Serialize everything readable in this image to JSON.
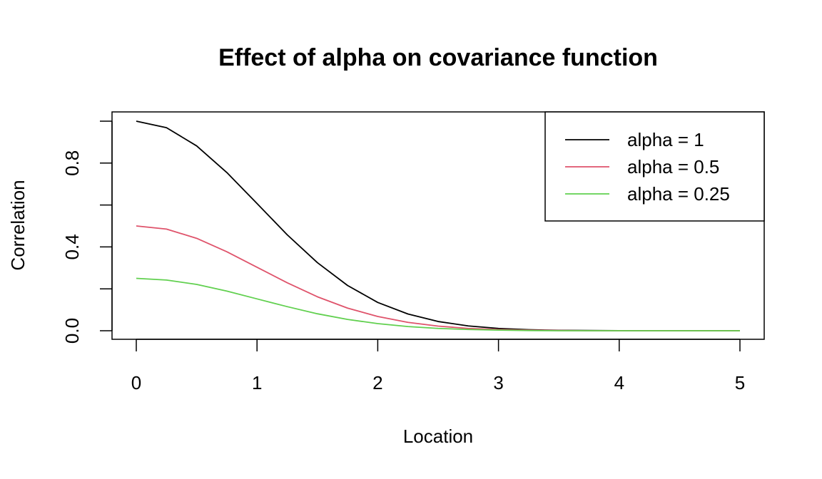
{
  "chart_data": {
    "type": "line",
    "title": "Effect of alpha on covariance function",
    "xlabel": "Location",
    "ylabel": "Correlation",
    "xlim": [
      0,
      5
    ],
    "ylim": [
      0,
      1
    ],
    "x_ticks": [
      0,
      1,
      2,
      3,
      4,
      5
    ],
    "x_tick_labels": [
      "0",
      "1",
      "2",
      "3",
      "4",
      "5"
    ],
    "y_ticks": [
      0,
      0.2,
      0.4,
      0.6,
      0.8,
      1.0
    ],
    "y_tick_labels": [
      "0.0",
      "",
      "0.4",
      "",
      "0.8",
      ""
    ],
    "grid": false,
    "legend_position": "top-right",
    "x": [
      0,
      0.25,
      0.5,
      0.75,
      1,
      1.25,
      1.5,
      1.75,
      2,
      2.25,
      2.5,
      2.75,
      3,
      3.25,
      3.5,
      3.75,
      4,
      4.25,
      4.5,
      4.75,
      5
    ],
    "series": [
      {
        "name": "alpha = 1",
        "color": "#000000",
        "values": [
          1.0,
          0.969,
          0.882,
          0.755,
          0.607,
          0.458,
          0.325,
          0.216,
          0.135,
          0.08,
          0.044,
          0.023,
          0.011,
          0.005,
          0.002,
          0.001,
          0.0003,
          0.0001,
          0.0,
          0.0,
          0.0
        ]
      },
      {
        "name": "alpha = 0.5",
        "color": "#DF536B",
        "values": [
          0.5,
          0.485,
          0.441,
          0.377,
          0.303,
          0.229,
          0.162,
          0.108,
          0.068,
          0.04,
          0.022,
          0.011,
          0.006,
          0.003,
          0.001,
          0.0,
          0.0,
          0.0,
          0.0,
          0.0,
          0.0
        ]
      },
      {
        "name": "alpha = 0.25",
        "color": "#61D04F",
        "values": [
          0.25,
          0.242,
          0.221,
          0.189,
          0.152,
          0.115,
          0.081,
          0.054,
          0.034,
          0.02,
          0.011,
          0.006,
          0.003,
          0.001,
          0.0,
          0.0,
          0.0,
          0.0,
          0.0,
          0.0,
          0.0
        ]
      }
    ]
  }
}
